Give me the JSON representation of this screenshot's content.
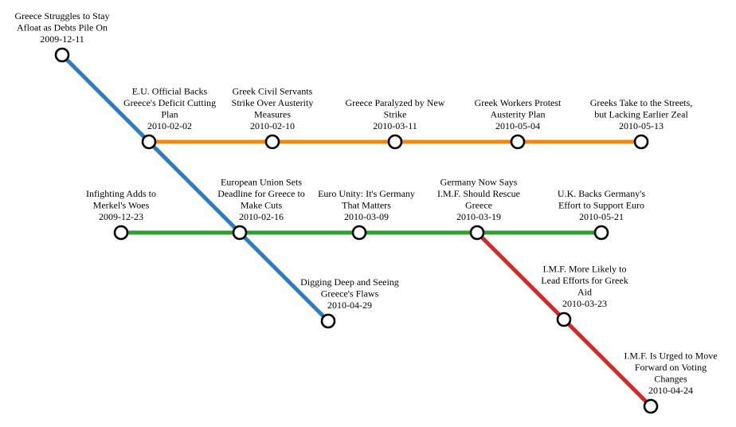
{
  "lines": [
    {
      "id": "blue",
      "color": "#2f7bbf",
      "stops": [
        "s1",
        "s2",
        "s8",
        "s9"
      ]
    },
    {
      "id": "orange",
      "color": "#f0880f",
      "stops": [
        "s2",
        "s3",
        "s4",
        "s5",
        "s6"
      ]
    },
    {
      "id": "green",
      "color": "#2ca02c",
      "stops": [
        "s7",
        "s8",
        "s10",
        "s11",
        "s12"
      ]
    },
    {
      "id": "red",
      "color": "#d62728",
      "stops": [
        "s11",
        "s13",
        "s14"
      ]
    }
  ],
  "stations": [
    {
      "id": "s1",
      "title": [
        "Greece Struggles to Stay",
        "Afloat as Debts Pile On"
      ],
      "date": "2009-12-11"
    },
    {
      "id": "s2",
      "title": [
        "E.U. Official Backs",
        "Greece's Deficit Cutting",
        "Plan"
      ],
      "date": "2010-02-02"
    },
    {
      "id": "s3",
      "title": [
        "Greek Civil Servants",
        "Strike Over Austerity",
        "Measures"
      ],
      "date": "2010-02-10"
    },
    {
      "id": "s4",
      "title": [
        "Greece Paralyzed by New",
        "Strike"
      ],
      "date": "2010-03-11"
    },
    {
      "id": "s5",
      "title": [
        "Greek Workers Protest",
        "Austerity Plan"
      ],
      "date": "2010-05-04"
    },
    {
      "id": "s6",
      "title": [
        "Greeks Take to the Streets,",
        "but Lacking Earlier Zeal"
      ],
      "date": "2010-05-13"
    },
    {
      "id": "s7",
      "title": [
        "Infighting Adds to",
        "Merkel's Woes"
      ],
      "date": "2009-12-23"
    },
    {
      "id": "s8",
      "title": [
        "European Union Sets",
        "Deadline for Greece to",
        "Make Cuts"
      ],
      "date": "2010-02-16"
    },
    {
      "id": "s10",
      "title": [
        "Euro Unity: It's Germany",
        "That Matters"
      ],
      "date": "2010-03-09"
    },
    {
      "id": "s11",
      "title": [
        "Germany Now Says",
        "I.M.F. Should Rescue",
        "Greece"
      ],
      "date": "2010-03-19"
    },
    {
      "id": "s12",
      "title": [
        "U.K. Backs Germany's",
        "Effort to Support Euro"
      ],
      "date": "2010-05-21"
    },
    {
      "id": "s9",
      "title": [
        "Digging Deep and Seeing",
        "Greece's Flaws"
      ],
      "date": "2010-04-29"
    },
    {
      "id": "s13",
      "title": [
        "I.M.F. More Likely to",
        "Lead Efforts for Greek",
        "Aid"
      ],
      "date": "2010-03-23"
    },
    {
      "id": "s14",
      "title": [
        "I.M.F. Is Urged to Move",
        "Forward on Voting",
        "Changes"
      ],
      "date": "2010-04-24"
    }
  ]
}
